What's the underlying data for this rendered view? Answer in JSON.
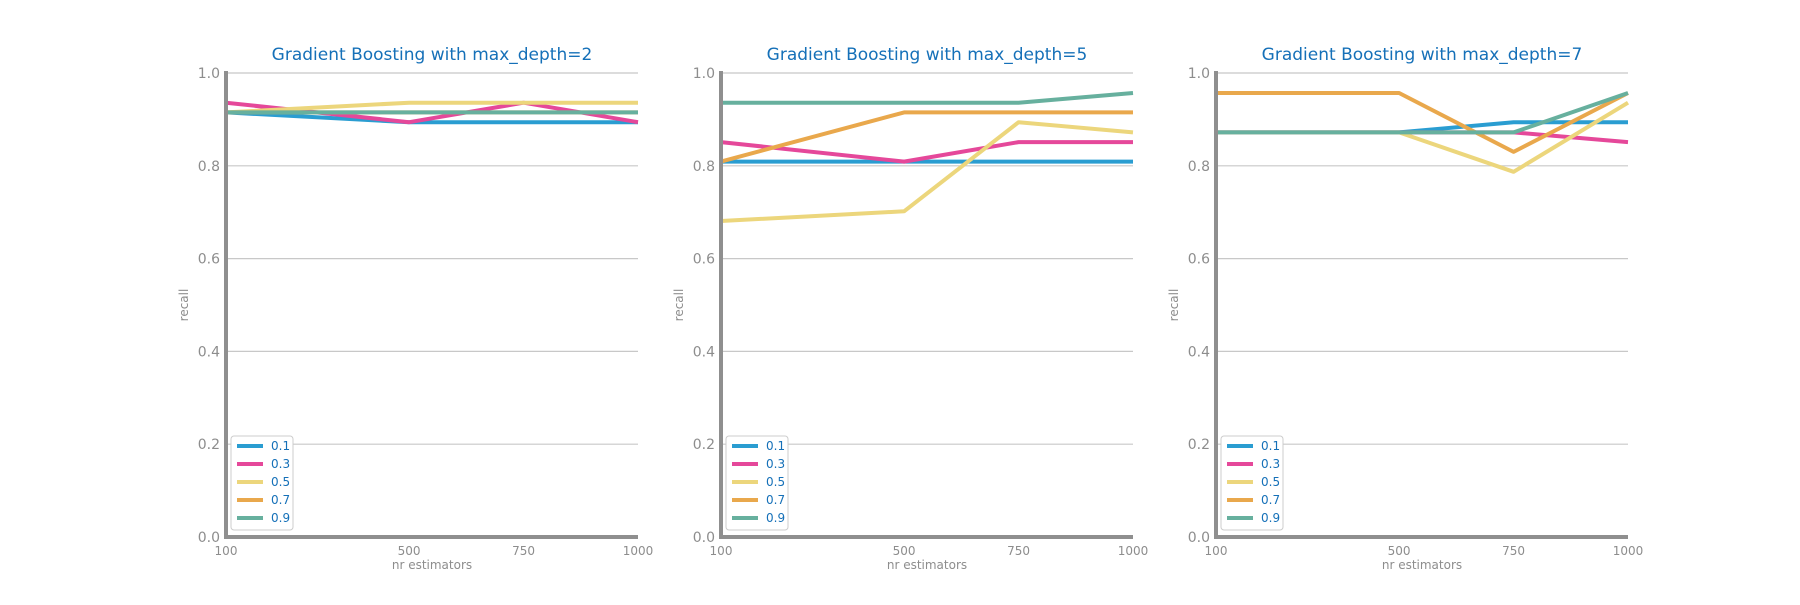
{
  "colors": {
    "0.1": "#2a9dd1",
    "0.3": "#e5489a",
    "0.5": "#ecd67c",
    "0.7": "#e9a84c",
    "0.9": "#67b09e"
  },
  "chart_data": [
    {
      "type": "line",
      "title": "Gradient Boosting with max_depth=2",
      "xlabel": "nr estimators",
      "ylabel": "recall",
      "x": [
        100,
        500,
        750,
        1000
      ],
      "ylim": [
        0,
        1
      ],
      "xlim": [
        100,
        1000
      ],
      "y_ticks": [
        "0.0",
        "0.2",
        "0.4",
        "0.6",
        "0.8",
        "1.0"
      ],
      "x_ticks": [
        "100",
        "500",
        "750",
        "1000"
      ],
      "grid": true,
      "legend_placement": "lower-left",
      "series": [
        {
          "name": "0.1",
          "values": [
            0.915,
            0.894,
            0.894,
            0.894
          ]
        },
        {
          "name": "0.3",
          "values": [
            0.936,
            0.894,
            0.936,
            0.894
          ]
        },
        {
          "name": "0.5",
          "values": [
            0.915,
            0.936,
            0.936,
            0.936
          ]
        },
        {
          "name": "0.7",
          "values": [
            0.915,
            0.915,
            0.915,
            0.915
          ]
        },
        {
          "name": "0.9",
          "values": [
            0.915,
            0.915,
            0.915,
            0.915
          ]
        }
      ]
    },
    {
      "type": "line",
      "title": "Gradient Boosting with max_depth=5",
      "xlabel": "nr estimators",
      "ylabel": "recall",
      "x": [
        100,
        500,
        750,
        1000
      ],
      "ylim": [
        0,
        1
      ],
      "xlim": [
        100,
        1000
      ],
      "y_ticks": [
        "0.0",
        "0.2",
        "0.4",
        "0.6",
        "0.8",
        "1.0"
      ],
      "x_ticks": [
        "100",
        "500",
        "750",
        "1000"
      ],
      "grid": true,
      "legend_placement": "lower-left",
      "series": [
        {
          "name": "0.1",
          "values": [
            0.809,
            0.809,
            0.809,
            0.809
          ]
        },
        {
          "name": "0.3",
          "values": [
            0.851,
            0.809,
            0.851,
            0.851
          ]
        },
        {
          "name": "0.5",
          "values": [
            0.681,
            0.702,
            0.894,
            0.872
          ]
        },
        {
          "name": "0.7",
          "values": [
            0.809,
            0.915,
            0.915,
            0.915
          ]
        },
        {
          "name": "0.9",
          "values": [
            0.936,
            0.936,
            0.936,
            0.957
          ]
        }
      ]
    },
    {
      "type": "line",
      "title": "Gradient Boosting with max_depth=7",
      "xlabel": "nr estimators",
      "ylabel": "recall",
      "x": [
        100,
        500,
        750,
        1000
      ],
      "ylim": [
        0,
        1
      ],
      "xlim": [
        100,
        1000
      ],
      "y_ticks": [
        "0.0",
        "0.2",
        "0.4",
        "0.6",
        "0.8",
        "1.0"
      ],
      "x_ticks": [
        "100",
        "500",
        "750",
        "1000"
      ],
      "grid": true,
      "legend_placement": "lower-left",
      "series": [
        {
          "name": "0.1",
          "values": [
            0.872,
            0.872,
            0.894,
            0.894
          ]
        },
        {
          "name": "0.3",
          "values": [
            0.872,
            0.872,
            0.872,
            0.851
          ]
        },
        {
          "name": "0.5",
          "values": [
            0.872,
            0.872,
            0.787,
            0.936
          ]
        },
        {
          "name": "0.7",
          "values": [
            0.957,
            0.957,
            0.83,
            0.957
          ]
        },
        {
          "name": "0.9",
          "values": [
            0.872,
            0.872,
            0.872,
            0.957
          ]
        }
      ]
    }
  ]
}
